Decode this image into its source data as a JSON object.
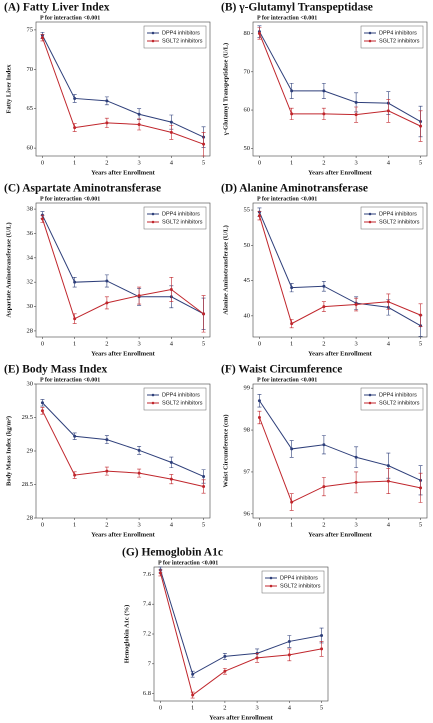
{
  "chart_data": [
    {
      "type": "line",
      "title": "(A) Fatty Liver Index",
      "annotation": "P for interaction <0.001",
      "x_label": "Years after Enrollment",
      "y_label": "Fatty Liver Index",
      "x": [
        0,
        1,
        2,
        3,
        4,
        5
      ],
      "xlim": [
        -0.2,
        5.2
      ],
      "xticks": [
        0,
        1,
        2,
        3,
        4,
        5
      ],
      "ylim": [
        59,
        76
      ],
      "yticks": [
        60,
        65,
        70,
        75
      ],
      "legend": "upper right",
      "series": [
        {
          "name": "DPP4 inhibitors",
          "color": "#2e3f7a",
          "values": [
            74.3,
            66.3,
            66.0,
            64.3,
            63.3,
            61.4
          ],
          "errors": [
            0.4,
            0.5,
            0.5,
            0.7,
            0.9,
            1.3
          ]
        },
        {
          "name": "SGLT2 inhibitors",
          "color": "#c0262c",
          "values": [
            74.0,
            62.6,
            63.2,
            63.0,
            62.0,
            60.5
          ],
          "errors": [
            0.4,
            0.5,
            0.6,
            0.7,
            0.9,
            1.5
          ]
        }
      ]
    },
    {
      "type": "line",
      "title": "(B) γ-Glutamyl Transpeptidase",
      "annotation": "P for interaction <0.001",
      "x_label": "Years after Enrollment",
      "y_label": "γ-Glutamyl Transpeptidase (U/L)",
      "x": [
        0,
        1,
        2,
        3,
        4,
        5
      ],
      "xlim": [
        -0.2,
        5.2
      ],
      "xticks": [
        0,
        1,
        2,
        3,
        4,
        5
      ],
      "ylim": [
        48,
        83
      ],
      "yticks": [
        50,
        60,
        70,
        80
      ],
      "legend": "upper right",
      "series": [
        {
          "name": "DPP4 inhibitors",
          "color": "#2e3f7a",
          "values": [
            80.5,
            65,
            65,
            62,
            61.8,
            57
          ],
          "errors": [
            1.5,
            2,
            2,
            2.5,
            3,
            4
          ]
        },
        {
          "name": "SGLT2 inhibitors",
          "color": "#c0262c",
          "values": [
            80,
            59,
            59,
            58.8,
            59.8,
            55.8
          ],
          "errors": [
            1.5,
            1.5,
            1.5,
            2,
            3,
            4
          ]
        }
      ]
    },
    {
      "type": "line",
      "title": "(C) Aspartate Aminotransferase",
      "annotation": "P for interaction <0.001",
      "x_label": "Years after Enrollment",
      "y_label": "Aspartate Aminotransferase (U/L)",
      "x": [
        0,
        1,
        2,
        3,
        4,
        5
      ],
      "xlim": [
        -0.2,
        5.2
      ],
      "xticks": [
        0,
        1,
        2,
        3,
        4,
        5
      ],
      "ylim": [
        27.5,
        38.5
      ],
      "yticks": [
        28,
        30,
        32,
        34,
        36,
        38
      ],
      "legend": "upper right",
      "series": [
        {
          "name": "DPP4 inhibitors",
          "color": "#2e3f7a",
          "values": [
            37.5,
            32.0,
            32.1,
            30.8,
            30.8,
            29.4
          ],
          "errors": [
            0.3,
            0.4,
            0.5,
            0.7,
            0.9,
            1.3
          ]
        },
        {
          "name": "SGLT2 inhibitors",
          "color": "#c0262c",
          "values": [
            37.2,
            29.0,
            30.3,
            30.9,
            31.4,
            29.4
          ],
          "errors": [
            0.3,
            0.4,
            0.5,
            0.7,
            1.0,
            1.5
          ]
        }
      ]
    },
    {
      "type": "line",
      "title": "(D) Alanine Aminotransferase",
      "annotation": "P for interaction <0.001",
      "x_label": "Years after Enrollment",
      "y_label": "Alanine Aminotransferase (U/L)",
      "x": [
        0,
        1,
        2,
        3,
        4,
        5
      ],
      "xlim": [
        -0.2,
        5.2
      ],
      "xticks": [
        0,
        1,
        2,
        3,
        4,
        5
      ],
      "ylim": [
        37,
        56
      ],
      "yticks": [
        40,
        45,
        50,
        55
      ],
      "legend": "upper right",
      "series": [
        {
          "name": "DPP4 inhibitors",
          "color": "#2e3f7a",
          "values": [
            54.7,
            44.0,
            44.2,
            41.8,
            41.2,
            38.6
          ],
          "errors": [
            0.6,
            0.6,
            0.7,
            0.9,
            1.1,
            1.5
          ]
        },
        {
          "name": "SGLT2 inhibitors",
          "color": "#c0262c",
          "values": [
            54.2,
            38.9,
            41.3,
            41.6,
            42.0,
            40.1
          ],
          "errors": [
            0.6,
            0.6,
            0.7,
            0.9,
            1.1,
            1.6
          ]
        }
      ]
    },
    {
      "type": "line",
      "title": "(E) Body Mass Index",
      "annotation": "P for interaction <0.001",
      "x_label": "Years after Enrollment",
      "y_label": "Body Mass Index (kg/m²)",
      "x": [
        0,
        1,
        2,
        3,
        4,
        5
      ],
      "xlim": [
        -0.2,
        5.2
      ],
      "xticks": [
        0,
        1,
        2,
        3,
        4,
        5
      ],
      "ylim": [
        28,
        30
      ],
      "yticks": [
        28,
        28.5,
        29,
        29.5,
        30
      ],
      "legend": "upper right",
      "series": [
        {
          "name": "DPP4 inhibitors",
          "color": "#2e3f7a",
          "values": [
            29.72,
            29.22,
            29.17,
            29.01,
            28.83,
            28.62
          ],
          "errors": [
            0.05,
            0.05,
            0.06,
            0.06,
            0.08,
            0.1
          ]
        },
        {
          "name": "SGLT2 inhibitors",
          "color": "#c0262c",
          "values": [
            29.6,
            28.64,
            28.7,
            28.67,
            28.58,
            28.47
          ],
          "errors": [
            0.05,
            0.05,
            0.06,
            0.06,
            0.07,
            0.1
          ]
        }
      ]
    },
    {
      "type": "line",
      "title": "(F) Waist Circumference",
      "annotation": "P for interaction <0.001",
      "x_label": "Years after Enrollment",
      "y_label": "Waist Circumference (cm)",
      "x": [
        0,
        1,
        2,
        3,
        4,
        5
      ],
      "xlim": [
        -0.2,
        5.2
      ],
      "xticks": [
        0,
        1,
        2,
        3,
        4,
        5
      ],
      "ylim": [
        95.9,
        99.1
      ],
      "yticks": [
        96,
        97,
        98,
        99
      ],
      "legend": "upper right",
      "series": [
        {
          "name": "DPP4 inhibitors",
          "color": "#2e3f7a",
          "values": [
            98.7,
            97.55,
            97.65,
            97.35,
            97.15,
            96.8
          ],
          "errors": [
            0.15,
            0.2,
            0.22,
            0.25,
            0.3,
            0.35
          ]
        },
        {
          "name": "SGLT2 inhibitors",
          "color": "#c0262c",
          "values": [
            98.3,
            96.28,
            96.65,
            96.75,
            96.78,
            96.62
          ],
          "errors": [
            0.15,
            0.2,
            0.22,
            0.25,
            0.3,
            0.35
          ]
        }
      ]
    },
    {
      "type": "line",
      "title": "(G) Hemoglobin A1c",
      "annotation": "P for interaction <0.001",
      "x_label": "Years after Enrollment",
      "y_label": "Hemoglobin A1c (%)",
      "x": [
        0,
        1,
        2,
        3,
        4,
        5
      ],
      "xlim": [
        -0.2,
        5.2
      ],
      "xticks": [
        0,
        1,
        2,
        3,
        4,
        5
      ],
      "ylim": [
        6.75,
        7.65
      ],
      "yticks": [
        6.8,
        7,
        7.2,
        7.4,
        7.6
      ],
      "legend": "upper right",
      "series": [
        {
          "name": "DPP4 inhibitors",
          "color": "#2e3f7a",
          "values": [
            7.63,
            6.93,
            7.05,
            7.07,
            7.15,
            7.19
          ],
          "errors": [
            0.02,
            0.02,
            0.02,
            0.03,
            0.04,
            0.05
          ]
        },
        {
          "name": "SGLT2 inhibitors",
          "color": "#c0262c",
          "values": [
            7.61,
            6.79,
            6.95,
            7.04,
            7.06,
            7.1
          ],
          "errors": [
            0.02,
            0.02,
            0.02,
            0.03,
            0.04,
            0.05
          ]
        }
      ]
    }
  ]
}
